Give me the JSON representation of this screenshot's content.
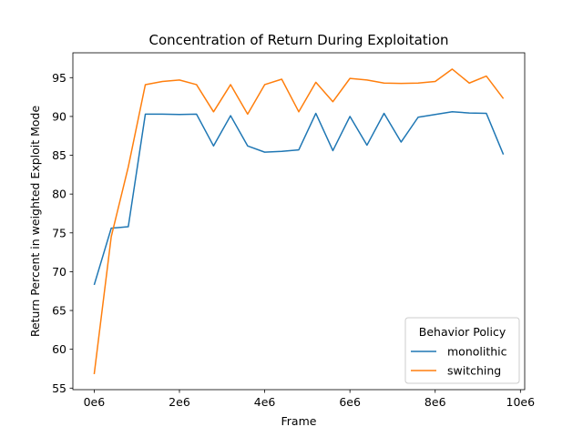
{
  "chart_data": {
    "type": "line",
    "title": "Concentration of Return During Exploitation",
    "xlabel": "Frame",
    "ylabel": "Return Percent in weighted Exploit Mode",
    "xlim": [
      -500000,
      10100000
    ],
    "ylim": [
      54.8,
      98.2
    ],
    "xticks": [
      0,
      2000000,
      4000000,
      6000000,
      8000000,
      10000000
    ],
    "xtick_labels": [
      "0e6",
      "2e6",
      "4e6",
      "6e6",
      "8e6",
      "10e6"
    ],
    "yticks": [
      55,
      60,
      65,
      70,
      75,
      80,
      85,
      90,
      95
    ],
    "ytick_labels": [
      "55",
      "60",
      "65",
      "70",
      "75",
      "80",
      "85",
      "90",
      "95"
    ],
    "grid": false,
    "legend": {
      "title": "Behavior Policy",
      "placement": "lower-right"
    },
    "x": [
      0,
      400000,
      800000,
      1200000,
      1600000,
      2000000,
      2400000,
      2800000,
      3200000,
      3600000,
      4000000,
      4400000,
      4800000,
      5200000,
      5600000,
      6000000,
      6400000,
      6800000,
      7200000,
      7600000,
      8000000,
      8400000,
      8800000,
      9200000,
      9600000
    ],
    "series": [
      {
        "name": "monolithic",
        "color": "#1f77b4",
        "values": [
          68.3,
          75.6,
          75.8,
          90.3,
          90.3,
          90.25,
          90.3,
          86.2,
          90.1,
          86.2,
          85.4,
          85.5,
          85.7,
          90.4,
          85.6,
          90.0,
          86.3,
          90.4,
          86.7,
          89.9,
          90.25,
          90.6,
          90.45,
          90.4,
          85.1
        ]
      },
      {
        "name": "switching",
        "color": "#ff7f0e",
        "values": [
          56.8,
          74.5,
          83.5,
          94.1,
          94.5,
          94.7,
          94.1,
          90.6,
          94.1,
          90.3,
          94.1,
          94.8,
          90.6,
          94.4,
          91.9,
          94.9,
          94.7,
          94.3,
          94.25,
          94.3,
          94.5,
          96.1,
          94.3,
          95.2,
          92.3
        ]
      }
    ]
  }
}
